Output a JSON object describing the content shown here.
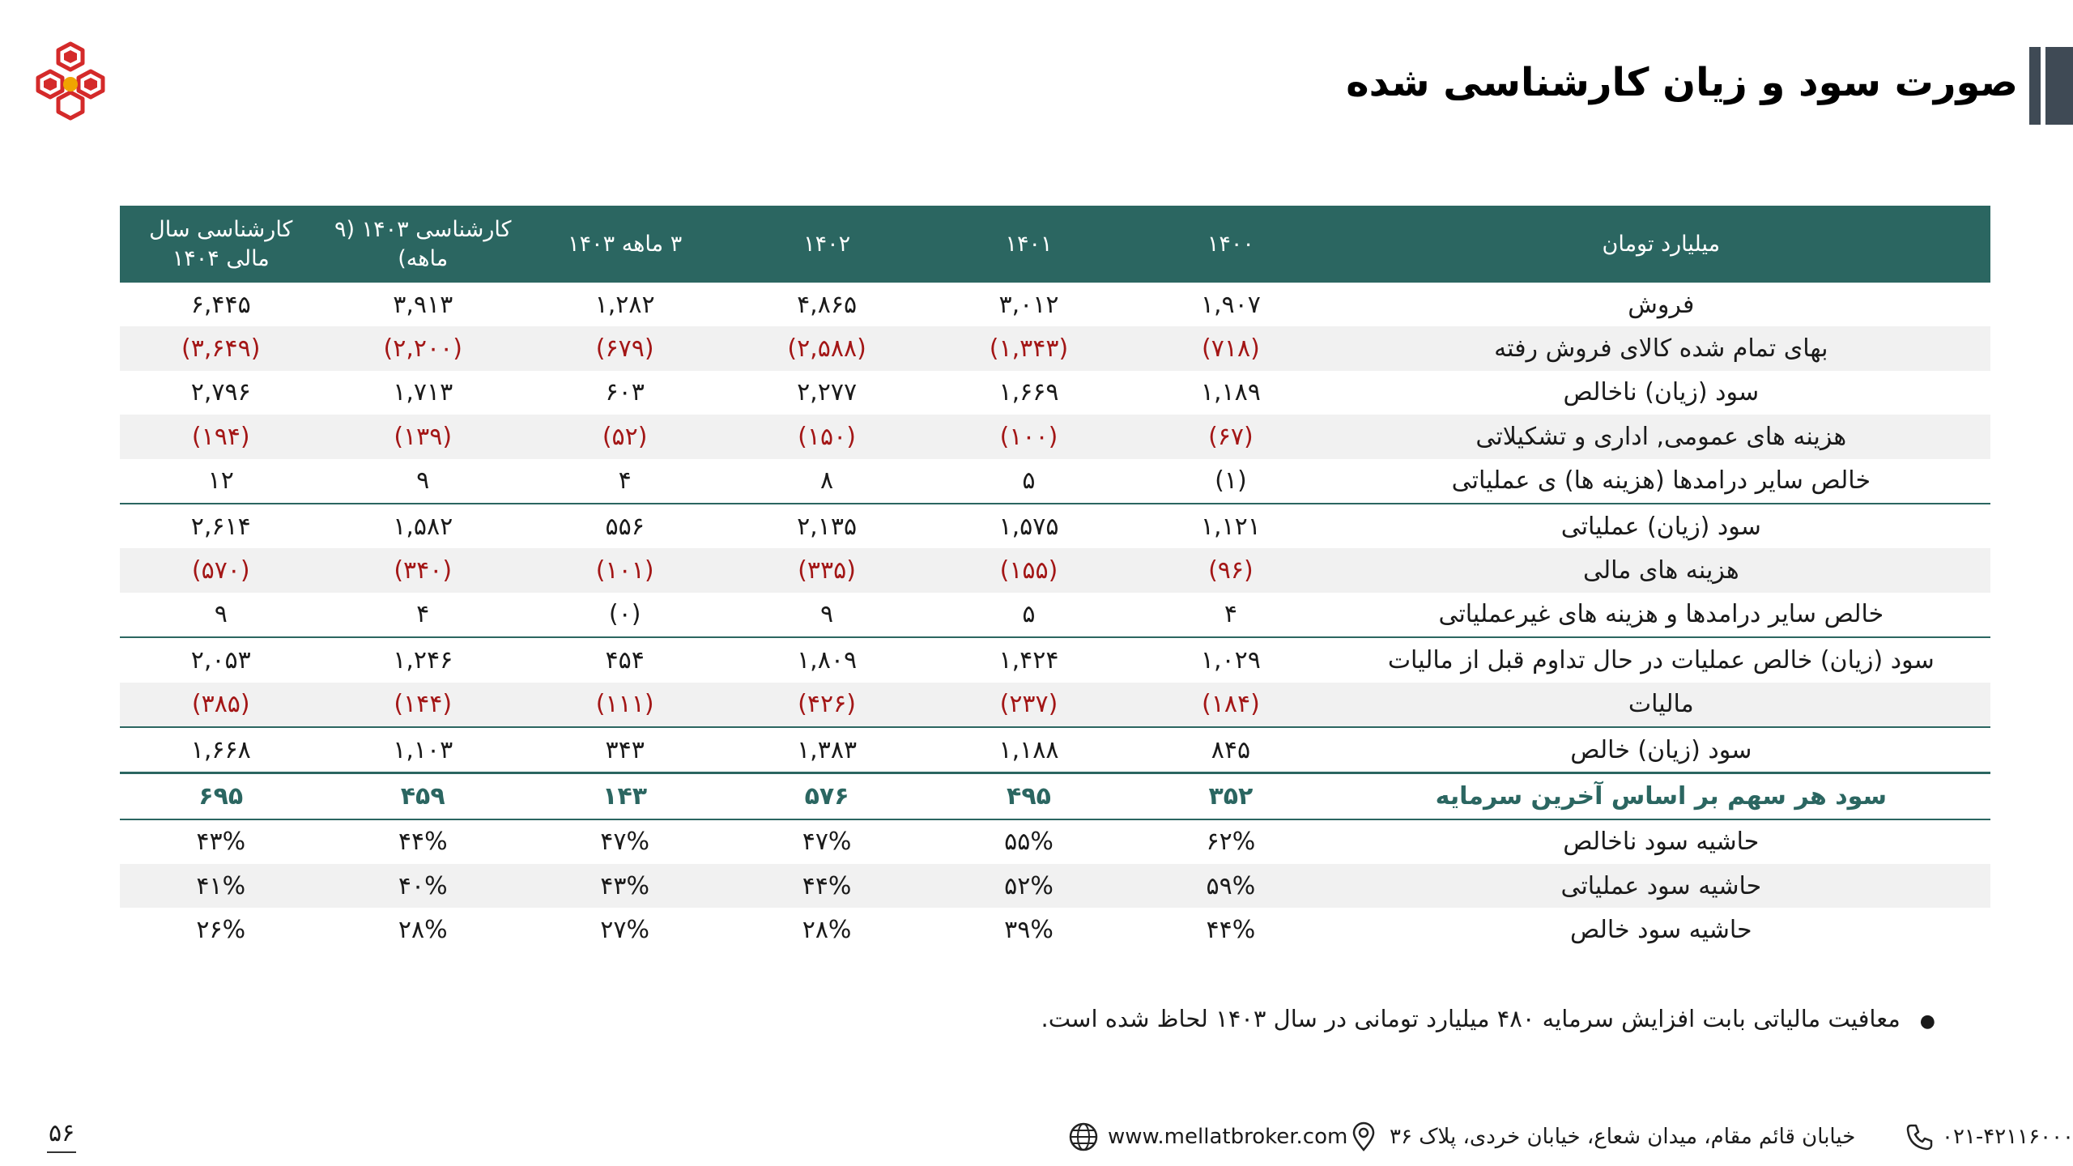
{
  "header": {
    "title": "صورت سود و زیان کارشناسی شده"
  },
  "table": {
    "columns": [
      "میلیارد تومان",
      "۱۴۰۰",
      "۱۴۰۱",
      "۱۴۰۲",
      "۳ ماهه ۱۴۰۳",
      "کارشناسی ۱۴۰۳ (۹ ماهه)",
      "کارشناسی سال مالی ۱۴۰۴"
    ],
    "rows": [
      {
        "label": "فروش",
        "values": [
          "۱,۹۰۷",
          "۳,۰۱۲",
          "۴,۸۶۵",
          "۱,۲۸۲",
          "۳,۹۱۳",
          "۶,۴۴۵"
        ]
      },
      {
        "label": "بهای تمام شده کالای فروش رفته",
        "values": [
          "(۷۱۸)",
          "(۱,۳۴۳)",
          "(۲,۵۸۸)",
          "(۶۷۹)",
          "(۲,۲۰۰)",
          "(۳,۶۴۹)"
        ]
      },
      {
        "label": "سود (زیان) ناخالص",
        "values": [
          "۱,۱۸۹",
          "۱,۶۶۹",
          "۲,۲۷۷",
          "۶۰۳",
          "۱,۷۱۳",
          "۲,۷۹۶"
        ]
      },
      {
        "label": "هزینه های عمومی, اداری و تشکیلاتی",
        "values": [
          "(۶۷)",
          "(۱۰۰)",
          "(۱۵۰)",
          "(۵۲)",
          "(۱۳۹)",
          "(۱۹۴)"
        ]
      },
      {
        "label": "خالص سایر درامدها (هزینه ها) ی عملیاتی",
        "values": [
          "(۱)",
          "۵",
          "۸",
          "۴",
          "۹",
          "۱۲"
        ]
      },
      {
        "label": "سود (زیان) عملیاتی",
        "values": [
          "۱,۱۲۱",
          "۱,۵۷۵",
          "۲,۱۳۵",
          "۵۵۶",
          "۱,۵۸۲",
          "۲,۶۱۴"
        ]
      },
      {
        "label": "هزینه های مالی",
        "values": [
          "(۹۶)",
          "(۱۵۵)",
          "(۳۳۵)",
          "(۱۰۱)",
          "(۳۴۰)",
          "(۵۷۰)"
        ]
      },
      {
        "label": "خالص سایر درامدها و هزینه های غیرعملیاتی",
        "values": [
          "۴",
          "۵",
          "۹",
          "(۰)",
          "۴",
          "۹"
        ]
      },
      {
        "label": "سود (زیان) خالص عملیات در حال تداوم قبل از مالیات",
        "values": [
          "۱,۰۲۹",
          "۱,۴۲۴",
          "۱,۸۰۹",
          "۴۵۴",
          "۱,۲۴۶",
          "۲,۰۵۳"
        ]
      },
      {
        "label": "مالیات",
        "values": [
          "(۱۸۴)",
          "(۲۳۷)",
          "(۴۲۶)",
          "(۱۱۱)",
          "(۱۴۴)",
          "(۳۸۵)"
        ]
      },
      {
        "label": "سود (زیان) خالص",
        "values": [
          "۸۴۵",
          "۱,۱۸۸",
          "۱,۳۸۳",
          "۳۴۳",
          "۱,۱۰۳",
          "۱,۶۶۸"
        ]
      },
      {
        "label": "سود هر سهم بر اساس آخرین سرمایه",
        "values": [
          "۳۵۲",
          "۴۹۵",
          "۵۷۶",
          "۱۴۳",
          "۴۵۹",
          "۶۹۵"
        ]
      },
      {
        "label": "حاشیه سود ناخالص",
        "values": [
          "۶۲%",
          "۵۵%",
          "۴۷%",
          "۴۷%",
          "۴۴%",
          "۴۳%"
        ]
      },
      {
        "label": "حاشیه سود عملیاتی",
        "values": [
          "۵۹%",
          "۵۲%",
          "۴۴%",
          "۴۳%",
          "۴۰%",
          "۴۱%"
        ]
      },
      {
        "label": "حاشیه سود خالص",
        "values": [
          "۴۴%",
          "۳۹%",
          "۲۸%",
          "۲۷%",
          "۲۸%",
          "۲۶%"
        ]
      }
    ]
  },
  "note": "معافیت مالیاتی بابت افزایش سرمایه ۴۸۰ میلیارد تومانی در سال ۱۴۰۳ لحاظ شده است.",
  "footer": {
    "phone": "۰۲۱-۴۲۱۱۶۰۰۰",
    "address": "خیابان قائم مقام، میدان شعاع، خیابان خردی، پلاک ۳۶",
    "website": "www.mellatbroker.com",
    "page_number": "۵۶"
  },
  "colors": {
    "header": "#2b6661",
    "negative": "#a31616",
    "logo_red": "#d42a2a",
    "logo_gold": "#f0a500"
  }
}
